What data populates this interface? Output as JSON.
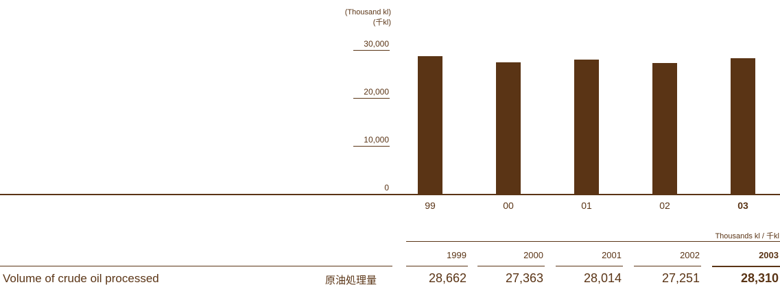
{
  "chart_data": {
    "type": "bar",
    "unit_label_en": "(Thousand kl)",
    "unit_label_jp": "(千kl)",
    "categories": [
      "99",
      "00",
      "01",
      "02",
      "03"
    ],
    "values": [
      28662,
      27363,
      28014,
      27251,
      28310
    ],
    "yticks": [
      "30,000",
      "20,000",
      "10,000",
      "0"
    ],
    "ytick_values": [
      30000,
      20000,
      10000,
      0
    ],
    "ylim": [
      0,
      30000
    ],
    "highlight_category": "03",
    "bar_color": "#5a3415"
  },
  "table": {
    "unit": "Thousands kl  / 千kl",
    "columns": [
      "1999",
      "2000",
      "2001",
      "2002",
      "2003"
    ],
    "rows": [
      {
        "label_en": "Volume of crude oil processed",
        "label_jp": "原油処理量",
        "values": [
          "28,662",
          "27,363",
          "28,014",
          "27,251",
          "28,310"
        ]
      }
    ]
  }
}
